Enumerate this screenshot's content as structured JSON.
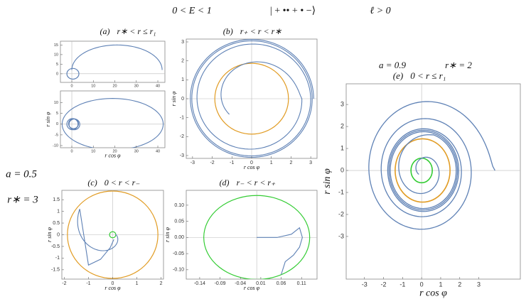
{
  "header": {
    "energy": "0 < E < 1",
    "state": "| + •• + • −⟩",
    "angular": "ℓ > 0"
  },
  "left": {
    "spin": "a = 0.5",
    "radius": "r∗ = 3"
  },
  "right": {
    "spin": "a = 0.9",
    "radius": "r∗ = 2"
  },
  "panels": [
    {
      "label": "(a)",
      "condition": "r∗ < r ≤ r₁",
      "plots": [
        {
          "xlim": [
            -5.3,
            43.3
          ],
          "ylim": [
            -4.5,
            17
          ],
          "xticks": [
            0,
            10,
            20,
            30,
            40
          ],
          "yticks": [
            0,
            5,
            10,
            15
          ]
        },
        {
          "xlabel": "r cos φ",
          "ylabel": "r sin φ",
          "xlim": [
            -5.3,
            43.3
          ],
          "ylim": [
            -11,
            15.5
          ],
          "xticks": [
            0,
            10,
            20,
            30,
            40
          ],
          "yticks": [
            -10,
            -5,
            0,
            5,
            10
          ]
        }
      ]
    },
    {
      "label": "(b)",
      "condition": "r₊ < r < r∗",
      "plots": [
        {
          "xlabel": "r cos φ",
          "ylabel": "r sin φ",
          "xlim": [
            -3.32,
            3.32
          ],
          "ylim": [
            -3.15,
            3.15
          ],
          "xticks": [
            -3,
            -2,
            -1,
            0,
            1,
            2,
            3
          ],
          "yticks": [
            -3,
            -2,
            -1,
            0,
            1,
            2,
            3
          ]
        }
      ]
    },
    {
      "label": "(c)",
      "condition": "0 < r < r₋",
      "plots": [
        {
          "xlabel": "r cos φ",
          "ylabel": "r sin φ",
          "xlim": [
            -2.1,
            2.1
          ],
          "ylim": [
            -1.9,
            1.9
          ],
          "xticks": [
            -2,
            -1,
            0,
            1,
            2
          ],
          "yticks": [
            -1.5,
            -1,
            -0.5,
            0,
            0.5,
            1,
            1.5
          ]
        }
      ]
    },
    {
      "label": "(d)",
      "condition": "r₋ < r < r₊",
      "plots": [
        {
          "xlabel": "r cos φ",
          "ylabel": "r sin φ",
          "xlim": [
            -0.173,
            0.148
          ],
          "ylim": [
            -0.129,
            0.146
          ],
          "xticks": [
            -0.14,
            -0.09,
            -0.04,
            0.01,
            0.06,
            0.11
          ],
          "yticks": [
            {
              "value": -0.1,
              "label": "-0.10"
            },
            -0.05,
            {
              "value": 0,
              "label": "0.00"
            },
            0.05,
            {
              "value": 0.1,
              "label": "0.10"
            }
          ]
        }
      ]
    },
    {
      "label": "(e)",
      "condition": "0 < r ≤ r₁",
      "plots": [
        {
          "xlabel": "r cos φ",
          "ylabel": "r sin φ",
          "xlim": [
            -3.96,
            5.18
          ],
          "ylim": [
            -4.94,
            3.94
          ],
          "xticks": [
            -3,
            -2,
            -1,
            0,
            1,
            2,
            3
          ],
          "yticks": [
            -3,
            -2,
            -1,
            0,
            1,
            2,
            3
          ]
        }
      ]
    }
  ]
}
